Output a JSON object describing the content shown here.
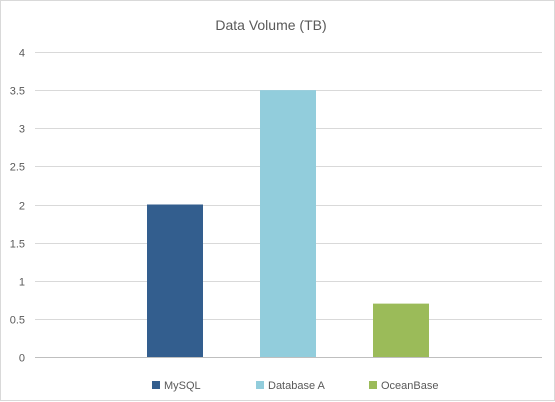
{
  "chart_data": {
    "type": "bar",
    "title": "Data Volume (TB)",
    "xlabel": "",
    "ylabel": "",
    "ylim": [
      0,
      4
    ],
    "y_ticks": [
      "0",
      "0.5",
      "1",
      "1.5",
      "2",
      "2.5",
      "3",
      "3.5",
      "4"
    ],
    "grid": true,
    "legend_position": "bottom",
    "series": [
      {
        "name": "MySQL",
        "value": 2,
        "color": "#335e8e"
      },
      {
        "name": "Database A",
        "value": 3.5,
        "color": "#92cddc"
      },
      {
        "name": "OceanBase",
        "value": 0.7,
        "color": "#9bbb59"
      }
    ]
  }
}
